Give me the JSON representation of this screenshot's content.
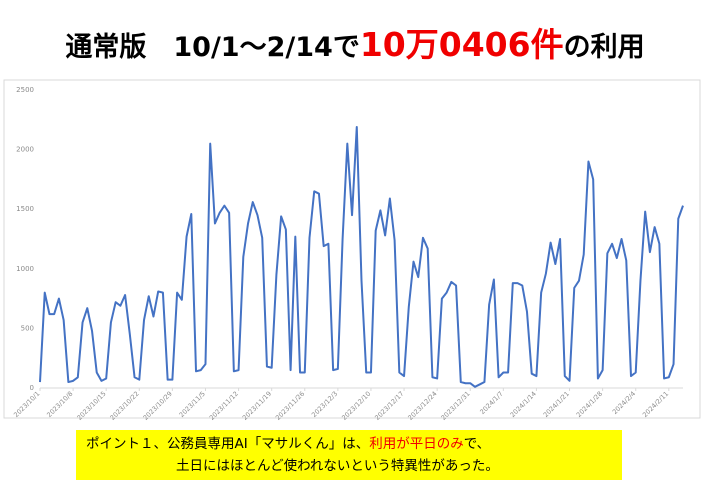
{
  "header": {
    "title_prefix": "通常版　10/1〜2/14で",
    "title_highlight": "10万0406件",
    "title_suffix": "の利用"
  },
  "callout": {
    "line1_prefix": "ポイント１、公務員専用AI「マサルくん」は、",
    "line1_highlight": "利用が平日のみ",
    "line1_suffix": "で、",
    "line2": "土日にはほとんど使われないという特異性があった。"
  },
  "chart_data": {
    "type": "line",
    "color": "#4472c4",
    "grid": false,
    "ylim": [
      0,
      2500
    ],
    "yticks": [
      0,
      500,
      1000,
      1500,
      2000,
      2500
    ],
    "categories": [
      "2023/10/1",
      null,
      null,
      null,
      null,
      null,
      null,
      "2023/10/8",
      null,
      null,
      null,
      null,
      null,
      null,
      "2023/10/15",
      null,
      null,
      null,
      null,
      null,
      null,
      "2023/10/22",
      null,
      null,
      null,
      null,
      null,
      null,
      "2023/10/29",
      null,
      null,
      null,
      null,
      null,
      null,
      "2023/11/5",
      null,
      null,
      null,
      null,
      null,
      null,
      "2023/11/12",
      null,
      null,
      null,
      null,
      null,
      null,
      "2023/11/19",
      null,
      null,
      null,
      null,
      null,
      null,
      "2023/11/26",
      null,
      null,
      null,
      null,
      null,
      null,
      "2023/12/3",
      null,
      null,
      null,
      null,
      null,
      null,
      "2023/12/10",
      null,
      null,
      null,
      null,
      null,
      null,
      "2023/12/17",
      null,
      null,
      null,
      null,
      null,
      null,
      "2023/12/24",
      null,
      null,
      null,
      null,
      null,
      null,
      "2023/12/31",
      null,
      null,
      null,
      null,
      null,
      null,
      "2024/1/7",
      null,
      null,
      null,
      null,
      null,
      null,
      "2024/1/14",
      null,
      null,
      null,
      null,
      null,
      null,
      "2024/1/21",
      null,
      null,
      null,
      null,
      null,
      null,
      "2024/1/28",
      null,
      null,
      null,
      null,
      null,
      null,
      "2024/2/4",
      null,
      null,
      null,
      null,
      null,
      null,
      "2024/2/11",
      null,
      null,
      null
    ],
    "values": [
      50,
      800,
      620,
      620,
      750,
      570,
      50,
      60,
      90,
      550,
      670,
      480,
      130,
      60,
      80,
      550,
      720,
      690,
      780,
      450,
      90,
      70,
      570,
      770,
      600,
      810,
      800,
      70,
      70,
      800,
      740,
      1270,
      1460,
      140,
      150,
      200,
      2050,
      1380,
      1470,
      1530,
      1470,
      140,
      150,
      1100,
      1380,
      1560,
      1450,
      1260,
      180,
      170,
      950,
      1440,
      1330,
      150,
      1270,
      130,
      130,
      1260,
      1650,
      1630,
      1190,
      1210,
      150,
      160,
      1250,
      2050,
      1450,
      2190,
      900,
      130,
      130,
      1320,
      1490,
      1280,
      1590,
      1240,
      130,
      100,
      680,
      1060,
      930,
      1260,
      1170,
      90,
      80,
      750,
      800,
      890,
      860,
      50,
      40,
      40,
      10,
      30,
      50,
      700,
      910,
      90,
      130,
      130,
      880,
      880,
      860,
      640,
      120,
      100,
      800,
      960,
      1220,
      1040,
      1250,
      100,
      60,
      840,
      900,
      1120,
      1900,
      1750,
      80,
      150,
      1130,
      1210,
      1090,
      1250,
      1070,
      100,
      130,
      900,
      1480,
      1140,
      1350,
      1210,
      80,
      90,
      200,
      1420,
      1530
    ]
  }
}
